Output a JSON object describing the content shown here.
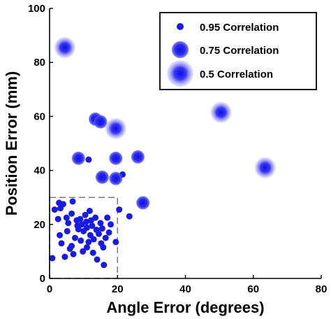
{
  "chart_data": {
    "type": "scatter",
    "xlabel": "Angle Error (degrees)",
    "ylabel": "Position Error (mm)",
    "xlim": [
      0,
      80
    ],
    "ylim": [
      0,
      100
    ],
    "xticks": [
      "0",
      "20",
      "40",
      "60",
      "80"
    ],
    "yticks": [
      "0",
      "20",
      "40",
      "60",
      "80",
      "100"
    ],
    "grid": false,
    "legend_position": "top-right",
    "marker_color": "#1a1ae6",
    "threshold_box": {
      "x": [
        0,
        20
      ],
      "y": [
        0,
        30
      ],
      "style": "dashed"
    },
    "series": [
      {
        "name": "0.95 Correlation",
        "points": [
          [
            0.8,
            7.5
          ],
          [
            1.5,
            25.5
          ],
          [
            2.5,
            22
          ],
          [
            2.8,
            28
          ],
          [
            3,
            16
          ],
          [
            3.2,
            26
          ],
          [
            3.5,
            13
          ],
          [
            4,
            27.5
          ],
          [
            4.5,
            8
          ],
          [
            5,
            22.5
          ],
          [
            5.2,
            17.5
          ],
          [
            5.5,
            20.5
          ],
          [
            6,
            11
          ],
          [
            6.5,
            12
          ],
          [
            6.5,
            24
          ],
          [
            6.8,
            28.5
          ],
          [
            7,
            9
          ],
          [
            7.5,
            15
          ],
          [
            8,
            21.5
          ],
          [
            8.2,
            19.5
          ],
          [
            8.5,
            18.2
          ],
          [
            9,
            22
          ],
          [
            9.2,
            14
          ],
          [
            9.5,
            20
          ],
          [
            9.8,
            10
          ],
          [
            10,
            17.5
          ],
          [
            10.5,
            23.5
          ],
          [
            10.8,
            21
          ],
          [
            11,
            11.5
          ],
          [
            11,
            18.8
          ],
          [
            11.5,
            13.5
          ],
          [
            11.8,
            25
          ],
          [
            12,
            16
          ],
          [
            12.2,
            21.5
          ],
          [
            12.5,
            19.5
          ],
          [
            12.8,
            9.5
          ],
          [
            13,
            14.5
          ],
          [
            13.5,
            22.5
          ],
          [
            13.8,
            18
          ],
          [
            14,
            7
          ],
          [
            14.5,
            16.5
          ],
          [
            15,
            20.5
          ],
          [
            15.2,
            13
          ],
          [
            15.5,
            18.5
          ],
          [
            15.8,
            11.5
          ],
          [
            16,
            5
          ],
          [
            16.5,
            15
          ],
          [
            17,
            22.5
          ],
          [
            17.5,
            17
          ],
          [
            18,
            20
          ],
          [
            19.5,
            13.5
          ],
          [
            20.5,
            25.5
          ],
          [
            23.5,
            23
          ],
          [
            11.5,
            44
          ],
          [
            21.5,
            38.5
          ]
        ]
      },
      {
        "name": "0.75 Correlation",
        "points": [
          [
            8.5,
            44.5
          ],
          [
            13.5,
            59
          ],
          [
            15,
            58
          ],
          [
            15.5,
            37.5
          ],
          [
            19.5,
            44.5
          ],
          [
            19.5,
            37
          ],
          [
            26,
            45
          ],
          [
            27.5,
            28
          ]
        ]
      },
      {
        "name": "0.5 Correlation",
        "points": [
          [
            4.5,
            85.5
          ],
          [
            19.5,
            55.5
          ],
          [
            50.5,
            61.5
          ],
          [
            63.5,
            41
          ]
        ]
      }
    ]
  }
}
